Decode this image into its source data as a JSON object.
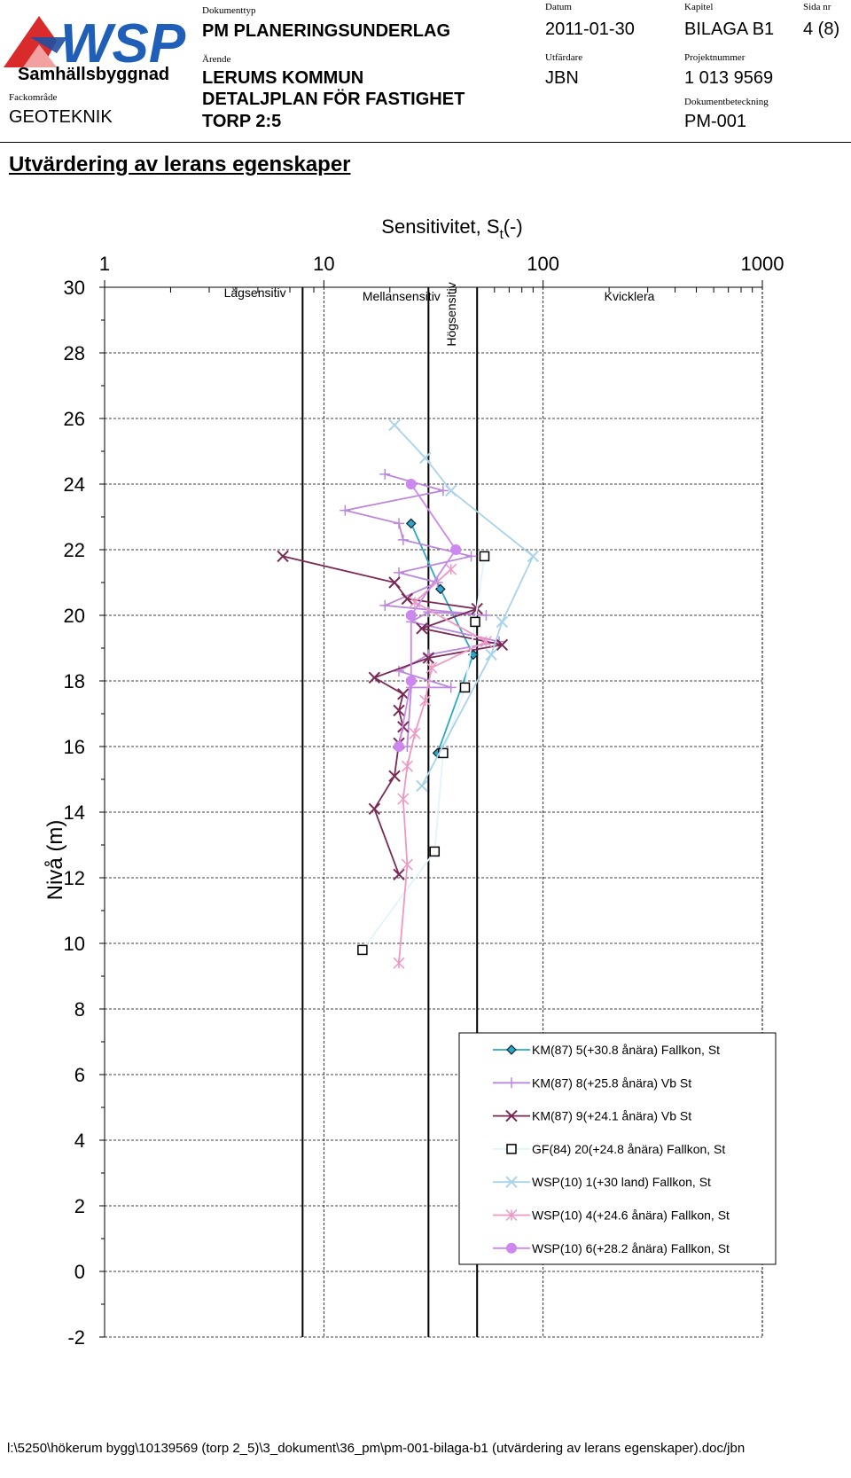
{
  "header": {
    "company": "WSP",
    "division": "Samhällsbyggnad",
    "field_label": "Fackområde",
    "field_value": "GEOTEKNIK",
    "doctype_label": "Dokumenttyp",
    "doctype_value": "PM PLANERINGSUNDERLAG",
    "subject_label": "Ärende",
    "subject_lines": [
      "LERUMS KOMMUN",
      "DETALJPLAN FÖR FASTIGHET",
      "TORP 2:5"
    ],
    "date_label": "Datum",
    "date_value": "2011-01-30",
    "issuer_label": "Utfärdare",
    "issuer_value": "JBN",
    "chapter_label": "Kapitel",
    "chapter_value": "BILAGA B1",
    "page_label": "Sida nr",
    "page_value": "4 (8)",
    "project_label": "Projektnummer",
    "project_value": "1 013 9569",
    "docid_label": "Dokumentbeteckning",
    "docid_value": "PM-001"
  },
  "heading": "Utvärdering av lerans egenskaper",
  "footer": "l:\\5250\\hökerum bygg\\10139569 (torp 2_5)\\3_dokument\\36_pm\\pm-001-bilaga-b1 (utvärdering av lerans egenskaper).doc/jbn",
  "chart_data": {
    "type": "scatter",
    "title_main": "Sensitivitet, S",
    "title_sub": "t",
    "title_tail": "(-)",
    "ylabel": "Nivå (m)",
    "x_scale": "log",
    "xlim": [
      1,
      1000
    ],
    "x_ticks": [
      1,
      10,
      100,
      1000
    ],
    "x_tick_labels": [
      "1",
      "10",
      "100",
      "1000"
    ],
    "ylim": [
      -2,
      30
    ],
    "y_ticks": [
      -2,
      0,
      2,
      4,
      6,
      8,
      10,
      12,
      14,
      16,
      18,
      20,
      22,
      24,
      26,
      28,
      30
    ],
    "y_tick_labels": [
      "-2",
      "0",
      "2",
      "4",
      "6",
      "8",
      "10",
      "12",
      "14",
      "16",
      "18",
      "20",
      "22",
      "24",
      "26",
      "28",
      "30"
    ],
    "grid": true,
    "boundaries": [
      8,
      30,
      50
    ],
    "zones": [
      {
        "label": "Lågsensitiv",
        "x": 3.5,
        "y": 29.7
      },
      {
        "label": "Mellansensitiv",
        "x": 15,
        "y": 29.6
      },
      {
        "label": "Högsensitiv",
        "x": 40,
        "y": 28.2,
        "vertical": true
      },
      {
        "label": "Kvicklera",
        "x": 190,
        "y": 29.6
      }
    ],
    "legend_position": "bottom-right",
    "series": [
      {
        "name": "KM(87) 5(+30.8 ånära) Fallkon, St",
        "color": "#2aa9c7",
        "marker": "diamond",
        "points": [
          [
            25,
            22.8
          ],
          [
            34,
            20.8
          ],
          [
            48,
            18.8
          ],
          [
            33,
            15.8
          ]
        ]
      },
      {
        "name": "KM(87) 8(+25.8 ånära) Vb St",
        "color": "#bb88dd",
        "marker": "plus",
        "points": [
          [
            19,
            24.3
          ],
          [
            35,
            23.8
          ],
          [
            12.5,
            23.2
          ],
          [
            22,
            22.8
          ],
          [
            23,
            22.3
          ],
          [
            47,
            21.8
          ],
          [
            22,
            21.3
          ],
          [
            33,
            21.0
          ],
          [
            19,
            20.3
          ],
          [
            55,
            20.0
          ],
          [
            30,
            20.1
          ],
          [
            25,
            19.8
          ],
          [
            63,
            19.2
          ],
          [
            30,
            18.8
          ],
          [
            22,
            18.3
          ],
          [
            38,
            17.8
          ],
          [
            25,
            17.8
          ],
          [
            24,
            16.0
          ]
        ]
      },
      {
        "name": "KM(87) 9(+24.1 ånära) Vb St",
        "color": "#7a2a55",
        "marker": "x",
        "points": [
          [
            6.5,
            21.8
          ],
          [
            21,
            21.0
          ],
          [
            24,
            20.5
          ],
          [
            50,
            20.2
          ],
          [
            28,
            19.6
          ],
          [
            65,
            19.1
          ],
          [
            30,
            18.7
          ],
          [
            17,
            18.1
          ],
          [
            23,
            17.6
          ],
          [
            22,
            17.1
          ],
          [
            23,
            16.6
          ],
          [
            22,
            16.1
          ],
          [
            21,
            15.1
          ],
          [
            17,
            14.1
          ],
          [
            22,
            12.1
          ]
        ]
      },
      {
        "name": "GF(84) 20(+24.8 ånära) Fallkon, St",
        "color": "#e0f4fb",
        "marker": "square",
        "points": [
          [
            54,
            21.8
          ],
          [
            49,
            19.8
          ],
          [
            44,
            17.8
          ],
          [
            35,
            15.8
          ],
          [
            32,
            12.8
          ],
          [
            15,
            9.8
          ]
        ]
      },
      {
        "name": "WSP(10) 1(+30 land) Fallkon, St",
        "color": "#a9d3ea",
        "marker": "x",
        "points": [
          [
            21,
            25.8
          ],
          [
            29,
            24.8
          ],
          [
            38,
            23.8
          ],
          [
            90,
            21.8
          ],
          [
            65,
            19.8
          ],
          [
            58,
            18.8
          ],
          [
            28,
            14.8
          ]
        ]
      },
      {
        "name": "WSP(10) 4(+24.6 ånära) Fallkon, St",
        "color": "#ee99c4",
        "marker": "asterisk",
        "points": [
          [
            38,
            21.4
          ],
          [
            26,
            20.4
          ],
          [
            55,
            19.2
          ],
          [
            31,
            18.4
          ],
          [
            29,
            17.4
          ],
          [
            26,
            16.4
          ],
          [
            24,
            15.4
          ],
          [
            23,
            14.4
          ],
          [
            24,
            12.4
          ],
          [
            22,
            9.4
          ]
        ]
      },
      {
        "name": "WSP(10) 6(+28.2 ånära) Fallkon, St",
        "color": "#cc88ee",
        "marker": "circle",
        "points": [
          [
            25,
            24.0
          ],
          [
            40,
            22.0
          ],
          [
            25,
            20.0
          ],
          [
            25,
            18.0
          ],
          [
            22,
            16.0
          ]
        ]
      }
    ]
  }
}
